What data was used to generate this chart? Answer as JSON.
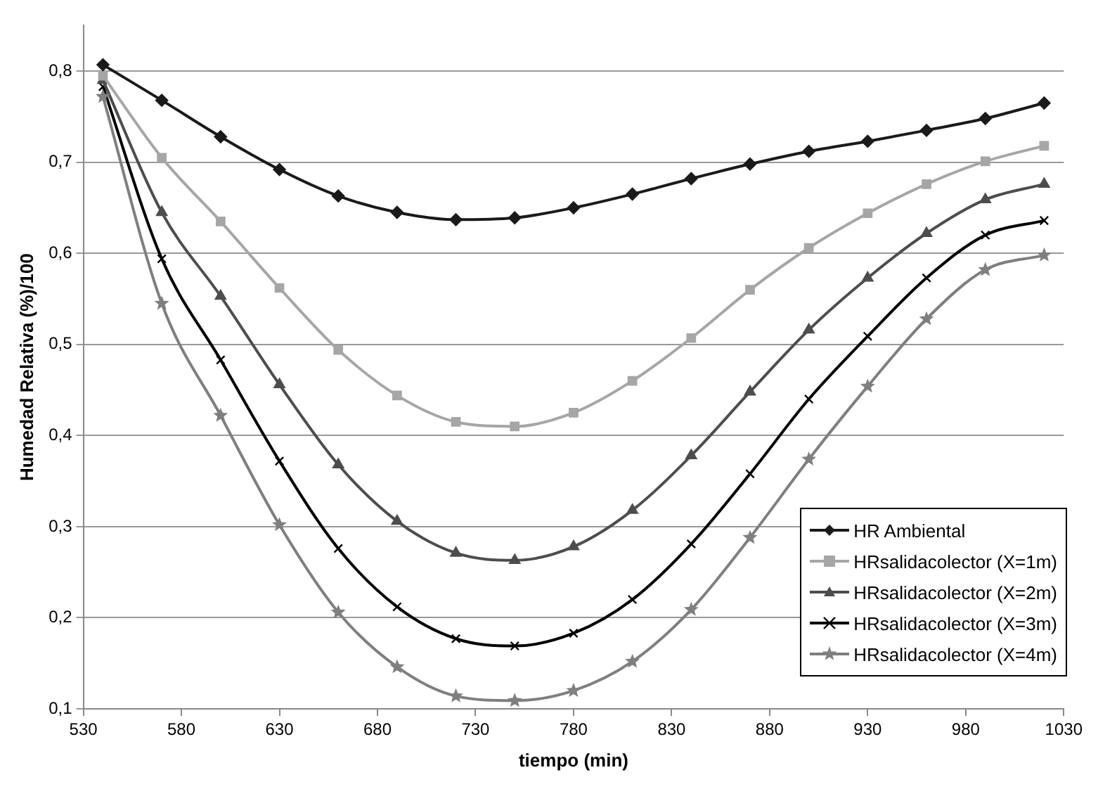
{
  "chart_data": {
    "type": "line",
    "xlabel": "tiempo (min)",
    "ylabel": "Humedad Relativa (%)/100",
    "x": [
      540,
      570,
      600,
      630,
      660,
      690,
      720,
      750,
      780,
      810,
      840,
      870,
      900,
      930,
      960,
      990,
      1020
    ],
    "xlim": [
      530,
      1030
    ],
    "xticks": [
      530,
      580,
      630,
      680,
      730,
      780,
      830,
      880,
      930,
      980,
      1030
    ],
    "ylim": [
      0.1,
      0.85
    ],
    "yticks": [
      {
        "value": 0.1,
        "label": "0,1"
      },
      {
        "value": 0.2,
        "label": "0,2"
      },
      {
        "value": 0.3,
        "label": "0,3"
      },
      {
        "value": 0.4,
        "label": "0,4"
      },
      {
        "value": 0.5,
        "label": "0,5"
      },
      {
        "value": 0.6,
        "label": "0,6"
      },
      {
        "value": 0.7,
        "label": "0,7"
      },
      {
        "value": 0.8,
        "label": "0,8"
      }
    ],
    "grid": "y",
    "legend": "bottom right",
    "series": [
      {
        "name": "HR Ambiental",
        "color": "#1a1a1a",
        "marker": "diamond",
        "values": [
          0.807,
          0.768,
          0.728,
          0.692,
          0.663,
          0.645,
          0.637,
          0.639,
          0.65,
          0.665,
          0.682,
          0.698,
          0.712,
          0.723,
          0.735,
          0.748,
          0.765
        ]
      },
      {
        "name": "HRsalidacolector (X=1m)",
        "color": "#a6a6a6",
        "marker": "square",
        "values": [
          0.795,
          0.705,
          0.635,
          0.562,
          0.494,
          0.444,
          0.415,
          0.41,
          0.425,
          0.46,
          0.507,
          0.56,
          0.606,
          0.644,
          0.676,
          0.701,
          0.718
        ]
      },
      {
        "name": "HRsalidacolector (X=2m)",
        "color": "#4d4d4d",
        "marker": "triangle",
        "values": [
          0.79,
          0.645,
          0.553,
          0.456,
          0.368,
          0.306,
          0.271,
          0.263,
          0.278,
          0.318,
          0.378,
          0.448,
          0.516,
          0.573,
          0.622,
          0.659,
          0.676
        ]
      },
      {
        "name": "HRsalidacolector (X=3m)",
        "color": "#000000",
        "marker": "cross",
        "values": [
          0.783,
          0.594,
          0.483,
          0.372,
          0.276,
          0.212,
          0.177,
          0.169,
          0.183,
          0.22,
          0.281,
          0.358,
          0.44,
          0.509,
          0.573,
          0.62,
          0.636
        ]
      },
      {
        "name": "HRsalidacolector (X=4m)",
        "color": "#7f7f7f",
        "marker": "star",
        "values": [
          0.772,
          0.545,
          0.422,
          0.302,
          0.206,
          0.146,
          0.114,
          0.109,
          0.12,
          0.152,
          0.209,
          0.288,
          0.374,
          0.454,
          0.528,
          0.582,
          0.598
        ]
      }
    ]
  }
}
